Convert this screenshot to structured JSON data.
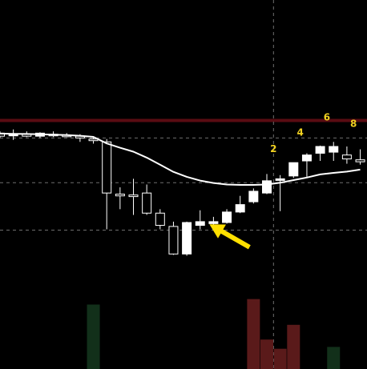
{
  "chart_data": {
    "type": "candlestick",
    "title": "",
    "xlabel": "",
    "ylabel": "",
    "ylim": [
      0,
      100
    ],
    "grid": false,
    "colors": {
      "background": "#000000",
      "candle_up_fill": "#ffffff",
      "candle_down_fill": "#000000",
      "candle_edge": "#ffffff",
      "moving_average": "#ffffff",
      "resistance_line": "#5a0c12",
      "dashed_guides": "#6e6e6e",
      "volume_up": "#5a1a1a",
      "volume_down": "#12301a",
      "labels": "#f0d020",
      "arrow": "#ffe000"
    },
    "resistance_level": 81.5,
    "guide_levels": [
      73.5,
      53.0,
      31.3
    ],
    "candles": [
      {
        "o": 75.7,
        "h": 76.5,
        "l": 73.5,
        "c": 74.3
      },
      {
        "o": 74.8,
        "h": 77.4,
        "l": 72.6,
        "c": 75.2
      },
      {
        "o": 75.2,
        "h": 76.5,
        "l": 73.9,
        "c": 74.3
      },
      {
        "o": 74.3,
        "h": 76.1,
        "l": 73.5,
        "c": 75.7
      },
      {
        "o": 75.2,
        "h": 76.5,
        "l": 73.9,
        "c": 74.8
      },
      {
        "o": 74.8,
        "h": 75.7,
        "l": 73.9,
        "c": 74.3
      },
      {
        "o": 74.3,
        "h": 75.2,
        "l": 71.7,
        "c": 73.5
      },
      {
        "o": 73.0,
        "h": 73.9,
        "l": 70.9,
        "c": 72.6
      },
      {
        "o": 71.7,
        "h": 73.0,
        "l": 31.7,
        "c": 48.3
      },
      {
        "o": 47.8,
        "h": 50.9,
        "l": 40.9,
        "c": 47.0
      },
      {
        "o": 47.4,
        "h": 54.8,
        "l": 38.3,
        "c": 47.0
      },
      {
        "o": 48.3,
        "h": 52.2,
        "l": 38.3,
        "c": 39.1
      },
      {
        "o": 39.1,
        "h": 40.9,
        "l": 31.7,
        "c": 33.5
      },
      {
        "o": 33.0,
        "h": 35.2,
        "l": 20.0,
        "c": 20.4
      },
      {
        "o": 20.4,
        "h": 35.2,
        "l": 19.6,
        "c": 34.8
      },
      {
        "o": 33.5,
        "h": 40.4,
        "l": 31.7,
        "c": 35.2
      },
      {
        "o": 34.3,
        "h": 37.4,
        "l": 32.2,
        "c": 35.2
      },
      {
        "o": 34.8,
        "h": 40.9,
        "l": 34.3,
        "c": 39.6
      },
      {
        "o": 39.6,
        "h": 47.0,
        "l": 39.1,
        "c": 43.0
      },
      {
        "o": 44.3,
        "h": 50.4,
        "l": 43.5,
        "c": 49.1
      },
      {
        "o": 48.3,
        "h": 57.0,
        "l": 47.8,
        "c": 53.9
      },
      {
        "o": 54.3,
        "h": 56.5,
        "l": 40.0,
        "c": 54.8
      },
      {
        "o": 56.1,
        "h": 62.2,
        "l": 55.2,
        "c": 62.2
      },
      {
        "o": 63.0,
        "h": 66.5,
        "l": 55.7,
        "c": 65.7
      },
      {
        "o": 66.5,
        "h": 70.0,
        "l": 63.0,
        "c": 69.6
      },
      {
        "o": 67.0,
        "h": 71.7,
        "l": 63.0,
        "c": 69.6
      },
      {
        "o": 65.7,
        "h": 69.6,
        "l": 61.7,
        "c": 63.9
      },
      {
        "o": 63.5,
        "h": 68.3,
        "l": 61.3,
        "c": 62.6
      }
    ],
    "moving_average": [
      75.5,
      75.4,
      75.3,
      75.2,
      75.0,
      74.8,
      74.5,
      74.0,
      71.0,
      69.0,
      67.2,
      64.5,
      61.3,
      58.0,
      55.7,
      54.0,
      52.9,
      52.2,
      52.0,
      52.0,
      52.2,
      53.0,
      54.2,
      55.4,
      56.8,
      57.5,
      58.1,
      59.0
    ],
    "volume": [
      {
        "index": 7,
        "value": 35,
        "direction": "down"
      },
      {
        "index": 19,
        "value": 38,
        "direction": "up"
      },
      {
        "index": 20,
        "value": 16,
        "direction": "up"
      },
      {
        "index": 21,
        "value": 11,
        "direction": "up"
      },
      {
        "index": 22,
        "value": 24,
        "direction": "up"
      },
      {
        "index": 25,
        "value": 12,
        "direction": "down"
      }
    ],
    "crosshair_index": 20.5,
    "sequence_labels": [
      {
        "text": "2",
        "index": 20.5,
        "level": 67.0
      },
      {
        "text": "4",
        "index": 22.5,
        "level": 74.5
      },
      {
        "text": "6",
        "index": 24.5,
        "level": 81.5
      },
      {
        "text": "8",
        "index": 26.5,
        "level": 78.5
      }
    ],
    "arrow": {
      "from_index": 18.7,
      "from_level": 23.5,
      "to_index": 15.7,
      "to_level": 34.0
    }
  }
}
